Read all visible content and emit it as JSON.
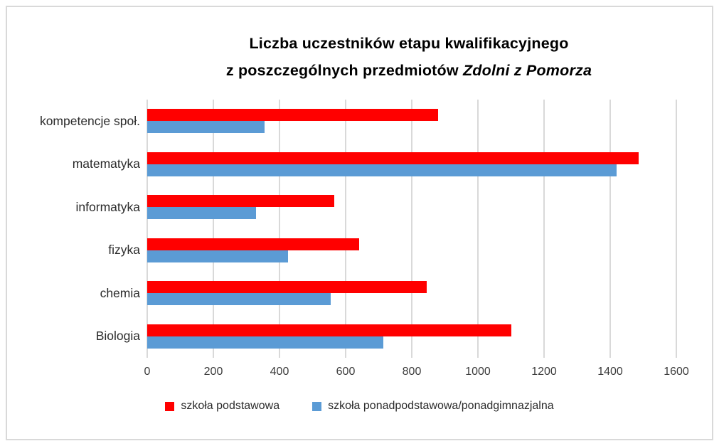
{
  "title": {
    "line1": "Liczba uczestników etapu kwalifikacyjnego",
    "line2_normal": "z poszczególnych przedmiotów ",
    "line2_italic": "Zdolni z Pomorza"
  },
  "chart_data": {
    "type": "bar",
    "orientation": "horizontal",
    "title": "Liczba uczestników etapu kwalifikacyjnego z poszczególnych przedmiotów Zdolni z Pomorza",
    "categories": [
      "kompetencje społ.",
      "matematyka",
      "informatyka",
      "fizyka",
      "chemia",
      "Biologia"
    ],
    "series": [
      {
        "name": "szkoła podstawowa",
        "color": "#ff0000",
        "values": [
          880,
          1485,
          565,
          640,
          845,
          1100
        ]
      },
      {
        "name": "szkoła ponadpodstawowa/ponadgimnazjalna",
        "color": "#5b9bd5",
        "values": [
          355,
          1420,
          330,
          425,
          555,
          715
        ]
      }
    ],
    "xlim": [
      0,
      1600
    ],
    "x_ticks": [
      0,
      200,
      400,
      600,
      800,
      1000,
      1200,
      1400,
      1600
    ],
    "xlabel": "",
    "ylabel": "",
    "grid": true,
    "gridline_color": "#d9d9d9",
    "legend_position": "bottom"
  },
  "legend": {
    "items": [
      {
        "label": "szkoła podstawowa",
        "color": "#ff0000"
      },
      {
        "label": "szkoła ponadpodstawowa/ponadgimnazjalna",
        "color": "#5b9bd5"
      }
    ]
  }
}
